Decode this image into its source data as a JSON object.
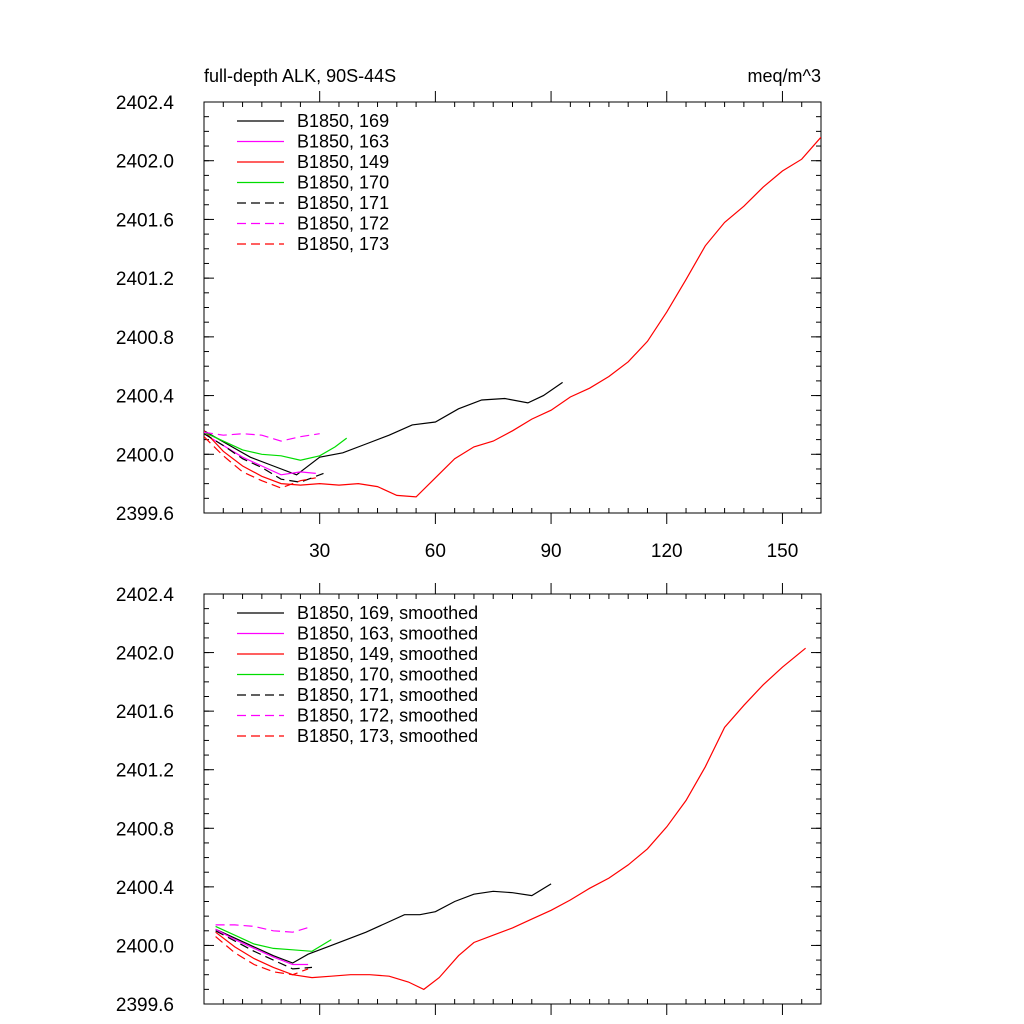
{
  "chart_data": [
    {
      "type": "line",
      "title": "full-depth ALK, 90S-44S",
      "units": "meq/m^3",
      "xlim": [
        0,
        160
      ],
      "ylim": [
        2399.6,
        2402.4
      ],
      "xticks": [
        30,
        60,
        90,
        120,
        150
      ],
      "xtick_labels": [
        "30",
        "60",
        "90",
        "120",
        "150"
      ],
      "yticks": [
        2399.6,
        2400.0,
        2400.4,
        2400.8,
        2401.2,
        2401.6,
        2402.0,
        2402.4
      ],
      "ytick_labels": [
        "2399.6",
        "2400.0",
        "2400.4",
        "2400.8",
        "2401.2",
        "2401.6",
        "2402.0",
        "2402.4"
      ],
      "legend_position": "top-left",
      "series": [
        {
          "name": "B1850, 169",
          "color": "#000000",
          "dash": "solid",
          "x": [
            0,
            6,
            12,
            18,
            24,
            30,
            36,
            42,
            48,
            54,
            60,
            66,
            72,
            78,
            84,
            88,
            93
          ],
          "y": [
            2400.16,
            2400.07,
            2399.98,
            2399.92,
            2399.86,
            2399.98,
            2400.01,
            2400.07,
            2400.13,
            2400.2,
            2400.22,
            2400.31,
            2400.37,
            2400.38,
            2400.35,
            2400.4,
            2400.49
          ]
        },
        {
          "name": "B1850, 163",
          "color": "#ff00ff",
          "dash": "solid",
          "x": [
            0,
            5,
            10,
            15,
            20,
            25,
            29
          ],
          "y": [
            2400.14,
            2400.06,
            2399.98,
            2399.92,
            2399.86,
            2399.88,
            2399.87
          ]
        },
        {
          "name": "B1850, 149",
          "color": "#ff0000",
          "dash": "solid",
          "x": [
            0,
            5,
            10,
            15,
            20,
            25,
            30,
            35,
            40,
            45,
            50,
            55,
            60,
            65,
            70,
            75,
            80,
            85,
            90,
            95,
            100,
            105,
            110,
            115,
            120,
            125,
            130,
            135,
            140,
            145,
            150,
            155,
            160
          ],
          "y": [
            2400.16,
            2400.02,
            2399.92,
            2399.85,
            2399.8,
            2399.79,
            2399.8,
            2399.79,
            2399.8,
            2399.78,
            2399.72,
            2399.71,
            2399.84,
            2399.97,
            2400.05,
            2400.09,
            2400.16,
            2400.24,
            2400.3,
            2400.39,
            2400.45,
            2400.53,
            2400.63,
            2400.77,
            2400.97,
            2401.19,
            2401.42,
            2401.58,
            2401.69,
            2401.82,
            2401.93,
            2402.01,
            2402.16
          ]
        },
        {
          "name": "B1850, 170",
          "color": "#00dd00",
          "dash": "solid",
          "x": [
            0,
            5,
            10,
            15,
            20,
            25,
            30,
            34,
            37
          ],
          "y": [
            2400.15,
            2400.09,
            2400.03,
            2400.0,
            2399.99,
            2399.96,
            2399.99,
            2400.05,
            2400.11
          ]
        },
        {
          "name": "B1850, 171",
          "color": "#000000",
          "dash": "dashed",
          "x": [
            0,
            5,
            10,
            15,
            20,
            25,
            31
          ],
          "y": [
            2400.14,
            2400.06,
            2399.97,
            2399.91,
            2399.83,
            2399.81,
            2399.87
          ]
        },
        {
          "name": "B1850, 172",
          "color": "#ff00ff",
          "dash": "dashed",
          "x": [
            0,
            5,
            10,
            15,
            20,
            25,
            30
          ],
          "y": [
            2400.15,
            2400.13,
            2400.14,
            2400.13,
            2400.09,
            2400.12,
            2400.14
          ]
        },
        {
          "name": "B1850, 173",
          "color": "#ff0000",
          "dash": "dashed",
          "x": [
            0,
            5,
            10,
            15,
            20,
            25,
            29
          ],
          "y": [
            2400.12,
            2399.99,
            2399.88,
            2399.82,
            2399.77,
            2399.82,
            2399.84
          ]
        }
      ]
    },
    {
      "type": "line",
      "xlim": [
        0,
        160
      ],
      "ylim": [
        2399.6,
        2402.4
      ],
      "xticks": [
        30,
        60,
        90,
        120,
        150
      ],
      "yticks": [
        2399.6,
        2400.0,
        2400.4,
        2400.8,
        2401.2,
        2401.6,
        2402.0,
        2402.4
      ],
      "ytick_labels": [
        "2399.6",
        "2400.0",
        "2400.4",
        "2400.8",
        "2401.2",
        "2401.6",
        "2402.0",
        "2402.4"
      ],
      "legend_position": "top-left",
      "series": [
        {
          "name": "B1850, 169, smoothed",
          "color": "#000000",
          "dash": "solid",
          "x": [
            3,
            8,
            13,
            18,
            23,
            27,
            32,
            37,
            42,
            47,
            52,
            56,
            60,
            65,
            70,
            75,
            80,
            85,
            90
          ],
          "y": [
            2400.11,
            2400.05,
            2399.99,
            2399.93,
            2399.88,
            2399.94,
            2399.99,
            2400.04,
            2400.09,
            2400.15,
            2400.21,
            2400.21,
            2400.23,
            2400.3,
            2400.35,
            2400.37,
            2400.36,
            2400.34,
            2400.42
          ]
        },
        {
          "name": "B1850, 163, smoothed",
          "color": "#ff00ff",
          "dash": "solid",
          "x": [
            3,
            8,
            13,
            18,
            23,
            27
          ],
          "y": [
            2400.11,
            2400.04,
            2399.98,
            2399.92,
            2399.87,
            2399.87
          ]
        },
        {
          "name": "B1850, 149, smoothed",
          "color": "#ff0000",
          "dash": "solid",
          "x": [
            3,
            8,
            13,
            18,
            23,
            28,
            33,
            38,
            43,
            48,
            53,
            57,
            61,
            66,
            70,
            75,
            80,
            85,
            90,
            95,
            100,
            105,
            110,
            115,
            120,
            125,
            130,
            135,
            140,
            145,
            150,
            156
          ],
          "y": [
            2400.09,
            2399.99,
            2399.91,
            2399.85,
            2399.8,
            2399.78,
            2399.79,
            2399.8,
            2399.8,
            2399.79,
            2399.75,
            2399.7,
            2399.78,
            2399.93,
            2400.02,
            2400.07,
            2400.12,
            2400.18,
            2400.24,
            2400.31,
            2400.39,
            2400.46,
            2400.55,
            2400.66,
            2400.81,
            2400.99,
            2401.22,
            2401.49,
            2401.64,
            2401.78,
            2401.9,
            2402.03
          ]
        },
        {
          "name": "B1850, 170, smoothed",
          "color": "#00dd00",
          "dash": "solid",
          "x": [
            3,
            8,
            13,
            18,
            23,
            28,
            33
          ],
          "y": [
            2400.13,
            2400.07,
            2400.01,
            2399.98,
            2399.97,
            2399.96,
            2400.04
          ]
        },
        {
          "name": "B1850, 171, smoothed",
          "color": "#000000",
          "dash": "dashed",
          "x": [
            3,
            8,
            13,
            18,
            23,
            28
          ],
          "y": [
            2400.1,
            2400.03,
            2399.96,
            2399.9,
            2399.84,
            2399.85
          ]
        },
        {
          "name": "B1850, 172, smoothed",
          "color": "#ff00ff",
          "dash": "dashed",
          "x": [
            3,
            8,
            13,
            18,
            23,
            28
          ],
          "y": [
            2400.14,
            2400.14,
            2400.13,
            2400.1,
            2400.09,
            2400.13
          ]
        },
        {
          "name": "B1850, 173, smoothed",
          "color": "#ff0000",
          "dash": "dashed",
          "x": [
            3,
            8,
            13,
            18,
            23,
            27
          ],
          "y": [
            2400.06,
            2399.95,
            2399.87,
            2399.82,
            2399.8,
            2399.84
          ]
        }
      ]
    }
  ]
}
